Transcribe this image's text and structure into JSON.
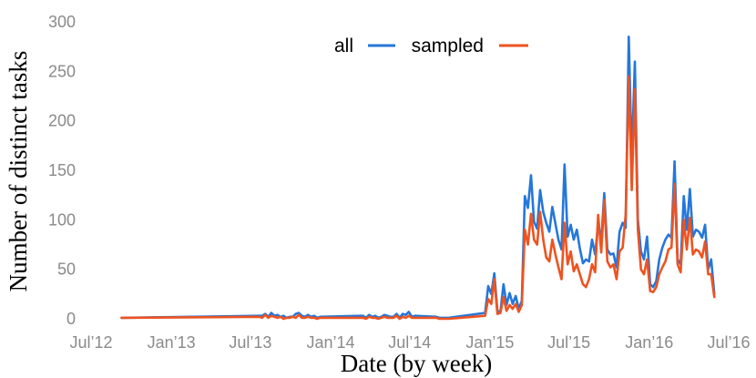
{
  "chart_data": {
    "type": "line",
    "title": "",
    "xlabel": "Date (by week)",
    "ylabel": "Number of distinct tasks",
    "ylim": [
      0,
      300
    ],
    "yticks": [
      0,
      50,
      100,
      150,
      200,
      250,
      300
    ],
    "xlim": [
      "2012-07-01",
      "2016-07-01"
    ],
    "xticks": [
      "2012-07-01",
      "2013-01-01",
      "2013-07-01",
      "2014-01-01",
      "2014-07-01",
      "2015-01-01",
      "2015-07-01",
      "2016-01-01",
      "2016-07-01"
    ],
    "xtick_labels": [
      "Jul’12",
      "Jan’13",
      "Jul’13",
      "Jan’14",
      "Jul’14",
      "Jan’15",
      "Jul’15",
      "Jan’16",
      "Jul’16"
    ],
    "legend_position": "top-center",
    "grid": false,
    "series": [
      {
        "name": "all",
        "color": "#2577d9",
        "x": [
          "2012-09-09",
          "2013-07-21",
          "2013-07-28",
          "2013-08-04",
          "2013-08-11",
          "2013-08-18",
          "2013-08-25",
          "2013-09-01",
          "2013-09-08",
          "2013-09-15",
          "2013-09-22",
          "2013-09-29",
          "2013-10-06",
          "2013-10-13",
          "2013-10-20",
          "2013-10-27",
          "2013-11-03",
          "2013-11-10",
          "2013-11-17",
          "2013-11-24",
          "2013-12-01",
          "2013-12-08",
          "2014-03-16",
          "2014-03-23",
          "2014-03-30",
          "2014-04-06",
          "2014-04-13",
          "2014-04-20",
          "2014-04-27",
          "2014-05-04",
          "2014-05-11",
          "2014-05-18",
          "2014-05-25",
          "2014-06-01",
          "2014-06-08",
          "2014-06-15",
          "2014-06-22",
          "2014-06-29",
          "2014-07-06",
          "2014-07-13",
          "2014-08-31",
          "2014-09-07",
          "2014-09-28",
          "2014-12-21",
          "2014-12-28",
          "2015-01-04",
          "2015-01-11",
          "2015-01-18",
          "2015-01-25",
          "2015-02-01",
          "2015-02-08",
          "2015-02-15",
          "2015-02-22",
          "2015-03-01",
          "2015-03-08",
          "2015-03-15",
          "2015-03-22",
          "2015-03-29",
          "2015-04-05",
          "2015-04-12",
          "2015-04-19",
          "2015-04-26",
          "2015-05-03",
          "2015-05-10",
          "2015-05-17",
          "2015-05-24",
          "2015-05-31",
          "2015-06-07",
          "2015-06-14",
          "2015-06-21",
          "2015-06-28",
          "2015-07-05",
          "2015-07-12",
          "2015-07-19",
          "2015-07-26",
          "2015-08-02",
          "2015-08-09",
          "2015-08-16",
          "2015-08-23",
          "2015-08-30",
          "2015-09-06",
          "2015-09-13",
          "2015-09-20",
          "2015-09-27",
          "2015-10-04",
          "2015-10-11",
          "2015-10-18",
          "2015-10-25",
          "2015-11-01",
          "2015-11-08",
          "2015-11-15",
          "2015-11-22",
          "2015-11-29",
          "2015-12-06",
          "2015-12-13",
          "2015-12-20",
          "2015-12-27",
          "2016-01-03",
          "2016-01-10",
          "2016-01-17",
          "2016-01-24",
          "2016-01-31",
          "2016-02-07",
          "2016-02-14",
          "2016-02-21",
          "2016-02-28",
          "2016-03-06",
          "2016-03-13",
          "2016-03-20",
          "2016-03-27",
          "2016-04-03",
          "2016-04-10",
          "2016-04-17",
          "2016-04-24",
          "2016-05-01",
          "2016-05-08",
          "2016-05-15",
          "2016-05-22",
          "2016-05-29"
        ],
        "y": [
          1,
          3,
          3,
          5,
          2,
          6,
          3,
          4,
          2,
          3,
          1,
          2,
          2,
          5,
          6,
          3,
          2,
          4,
          2,
          3,
          1,
          2,
          3,
          1,
          4,
          2,
          3,
          1,
          2,
          4,
          3,
          2,
          2,
          5,
          1,
          5,
          4,
          7,
          2,
          3,
          2,
          1,
          1,
          6,
          33,
          25,
          46,
          8,
          7,
          35,
          14,
          26,
          15,
          23,
          10,
          18,
          124,
          112,
          145,
          98,
          91,
          130,
          108,
          97,
          88,
          113,
          96,
          80,
          70,
          156,
          83,
          95,
          80,
          90,
          71,
          56,
          60,
          58,
          80,
          65,
          96,
          78,
          127,
          70,
          65,
          66,
          52,
          88,
          97,
          92,
          285,
          160,
          260,
          100,
          68,
          60,
          83,
          35,
          32,
          38,
          60,
          72,
          80,
          85,
          82,
          159,
          60,
          55,
          124,
          90,
          131,
          83,
          90,
          88,
          82,
          95,
          50,
          60,
          25
        ]
      },
      {
        "name": "sampled",
        "color": "#ee5320",
        "x": [
          "2012-09-09",
          "2013-07-21",
          "2013-07-28",
          "2013-08-04",
          "2013-08-11",
          "2013-08-18",
          "2013-08-25",
          "2013-09-01",
          "2013-09-08",
          "2013-09-15",
          "2013-09-22",
          "2013-09-29",
          "2013-10-06",
          "2013-10-13",
          "2013-10-20",
          "2013-10-27",
          "2013-11-03",
          "2013-11-10",
          "2013-11-17",
          "2013-11-24",
          "2013-12-01",
          "2013-12-08",
          "2014-03-16",
          "2014-03-23",
          "2014-03-30",
          "2014-04-06",
          "2014-04-13",
          "2014-04-20",
          "2014-04-27",
          "2014-05-04",
          "2014-05-11",
          "2014-05-18",
          "2014-05-25",
          "2014-06-01",
          "2014-06-08",
          "2014-06-15",
          "2014-06-22",
          "2014-06-29",
          "2014-07-06",
          "2014-07-13",
          "2014-08-31",
          "2014-09-07",
          "2014-09-28",
          "2014-12-21",
          "2014-12-28",
          "2015-01-04",
          "2015-01-11",
          "2015-01-18",
          "2015-01-25",
          "2015-02-01",
          "2015-02-08",
          "2015-02-15",
          "2015-02-22",
          "2015-03-01",
          "2015-03-08",
          "2015-03-15",
          "2015-03-22",
          "2015-03-29",
          "2015-04-05",
          "2015-04-12",
          "2015-04-19",
          "2015-04-26",
          "2015-05-03",
          "2015-05-10",
          "2015-05-17",
          "2015-05-24",
          "2015-05-31",
          "2015-06-07",
          "2015-06-14",
          "2015-06-21",
          "2015-06-28",
          "2015-07-05",
          "2015-07-12",
          "2015-07-19",
          "2015-07-26",
          "2015-08-02",
          "2015-08-09",
          "2015-08-16",
          "2015-08-23",
          "2015-08-30",
          "2015-09-06",
          "2015-09-13",
          "2015-09-20",
          "2015-09-27",
          "2015-10-04",
          "2015-10-11",
          "2015-10-18",
          "2015-10-25",
          "2015-11-01",
          "2015-11-08",
          "2015-11-15",
          "2015-11-22",
          "2015-11-29",
          "2015-12-06",
          "2015-12-13",
          "2015-12-20",
          "2015-12-27",
          "2016-01-03",
          "2016-01-10",
          "2016-01-17",
          "2016-01-24",
          "2016-01-31",
          "2016-02-07",
          "2016-02-14",
          "2016-02-21",
          "2016-02-28",
          "2016-03-06",
          "2016-03-13",
          "2016-03-20",
          "2016-03-27",
          "2016-04-03",
          "2016-04-10",
          "2016-04-17",
          "2016-04-24",
          "2016-05-01",
          "2016-05-08",
          "2016-05-15",
          "2016-05-22",
          "2016-05-29"
        ],
        "y": [
          1,
          2,
          1,
          4,
          1,
          3,
          2,
          1,
          2,
          0,
          1,
          1,
          2,
          1,
          4,
          1,
          1,
          2,
          1,
          1,
          0,
          1,
          1,
          0,
          2,
          1,
          1,
          0,
          1,
          2,
          1,
          1,
          1,
          3,
          0,
          2,
          1,
          3,
          1,
          1,
          1,
          0,
          0,
          3,
          20,
          15,
          40,
          5,
          6,
          22,
          8,
          14,
          10,
          15,
          7,
          14,
          90,
          75,
          106,
          80,
          75,
          108,
          80,
          62,
          58,
          80,
          65,
          52,
          40,
          97,
          55,
          68,
          48,
          55,
          45,
          35,
          32,
          40,
          55,
          47,
          105,
          67,
          120,
          58,
          52,
          55,
          40,
          68,
          72,
          105,
          245,
          130,
          232,
          90,
          50,
          45,
          60,
          28,
          27,
          32,
          45,
          52,
          58,
          70,
          72,
          136,
          55,
          47,
          100,
          70,
          102,
          65,
          70,
          68,
          62,
          78,
          45,
          45,
          22
        ]
      }
    ]
  }
}
